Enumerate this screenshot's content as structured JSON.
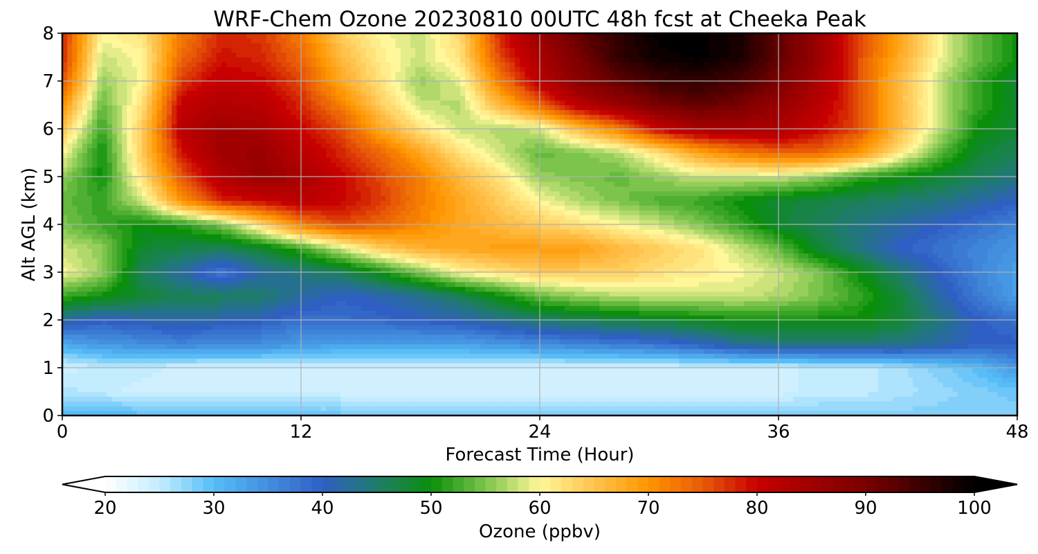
{
  "chart_data": {
    "type": "heatmap",
    "title": "WRF-Chem Ozone  20230810 00UTC 48h fcst at Cheeka Peak",
    "xlabel": "Forecast Time (Hour)",
    "ylabel": "Alt AGL (km)",
    "xlim": [
      0,
      48
    ],
    "ylim": [
      0,
      8
    ],
    "xticks": [
      "0",
      "12",
      "24",
      "36",
      "48"
    ],
    "yticks": [
      "0",
      "1",
      "2",
      "3",
      "4",
      "5",
      "6",
      "7",
      "8"
    ],
    "grid": true,
    "colorbar": {
      "label": "Ozone  (ppbv)",
      "range": [
        20,
        100
      ],
      "ticks": [
        "20",
        "30",
        "40",
        "50",
        "60",
        "70",
        "80",
        "90",
        "100"
      ],
      "extend": "both",
      "stops": [
        {
          "v": 20,
          "c": "#ffffff"
        },
        {
          "v": 25,
          "c": "#c4ecff"
        },
        {
          "v": 30,
          "c": "#56bdf7"
        },
        {
          "v": 40,
          "c": "#2f5fc4"
        },
        {
          "v": 45,
          "c": "#1f7c6c"
        },
        {
          "v": 50,
          "c": "#0a8f0a"
        },
        {
          "v": 55,
          "c": "#7cc44c"
        },
        {
          "v": 60,
          "c": "#fff799"
        },
        {
          "v": 65,
          "c": "#ffc24d"
        },
        {
          "v": 70,
          "c": "#ff9500"
        },
        {
          "v": 75,
          "c": "#e85a08"
        },
        {
          "v": 80,
          "c": "#c80000"
        },
        {
          "v": 90,
          "c": "#7a0000"
        },
        {
          "v": 100,
          "c": "#000000"
        }
      ]
    },
    "hours": [
      0,
      2,
      4,
      6,
      8,
      10,
      12,
      14,
      16,
      18,
      20,
      22,
      24,
      26,
      28,
      30,
      32,
      34,
      36,
      38,
      40,
      42,
      44,
      46,
      48
    ],
    "altitudes_km": [
      0,
      0.5,
      1,
      1.5,
      2,
      2.5,
      3,
      3.5,
      4,
      4.5,
      5,
      5.5,
      6,
      6.5,
      7,
      7.5,
      8
    ],
    "values": [
      [
        30,
        31,
        30,
        30,
        30,
        30,
        29,
        29,
        28,
        28,
        28,
        28,
        28,
        28,
        28,
        28,
        28,
        28,
        28,
        28,
        28,
        28,
        28,
        28,
        28
      ],
      [
        26,
        25,
        24,
        24,
        24,
        24,
        24,
        24,
        24,
        24,
        24,
        24,
        24,
        24,
        24,
        24,
        24,
        24,
        24,
        25,
        25,
        26,
        27,
        28,
        29
      ],
      [
        24,
        25,
        25,
        24,
        24,
        24,
        24,
        24,
        24,
        24,
        24,
        24,
        24,
        24,
        24,
        24,
        24,
        24,
        24,
        25,
        25,
        26,
        28,
        30,
        34
      ],
      [
        32,
        34,
        35,
        36,
        35,
        35,
        34,
        33,
        33,
        33,
        33,
        34,
        35,
        36,
        37,
        38,
        40,
        43,
        44,
        44,
        44,
        44,
        42,
        40,
        40
      ],
      [
        42,
        40,
        41,
        42,
        41,
        40,
        38,
        38,
        39,
        40,
        41,
        43,
        45,
        46,
        47,
        48,
        49,
        50,
        50,
        50,
        50,
        48,
        44,
        40,
        38
      ],
      [
        52,
        50,
        48,
        46,
        46,
        45,
        42,
        40,
        41,
        43,
        46,
        50,
        54,
        56,
        57,
        58,
        58,
        58,
        57,
        55,
        52,
        48,
        42,
        37,
        33
      ],
      [
        60,
        56,
        46,
        42,
        37,
        42,
        44,
        46,
        50,
        55,
        60,
        62,
        64,
        64,
        64,
        62,
        61,
        60,
        58,
        55,
        50,
        45,
        40,
        36,
        33
      ],
      [
        58,
        56,
        48,
        47,
        46,
        48,
        52,
        58,
        64,
        67,
        68,
        69,
        69,
        69,
        66,
        64,
        62,
        58,
        54,
        48,
        44,
        40,
        38,
        36,
        34
      ],
      [
        55,
        52,
        50,
        51,
        55,
        63,
        72,
        76,
        74,
        71,
        68,
        66,
        64,
        62,
        60,
        58,
        55,
        52,
        48,
        46,
        44,
        42,
        40,
        38,
        36
      ],
      [
        54,
        52,
        58,
        70,
        78,
        80,
        82,
        80,
        77,
        72,
        68,
        64,
        60,
        57,
        55,
        53,
        52,
        50,
        48,
        47,
        46,
        45,
        44,
        42,
        40
      ],
      [
        56,
        50,
        62,
        75,
        83,
        86,
        84,
        80,
        76,
        72,
        66,
        62,
        56,
        55,
        54,
        56,
        58,
        58,
        58,
        56,
        52,
        50,
        48,
        46,
        44
      ],
      [
        60,
        50,
        64,
        79,
        85,
        86,
        82,
        78,
        74,
        68,
        62,
        58,
        54,
        55,
        57,
        62,
        68,
        72,
        74,
        74,
        70,
        62,
        54,
        48,
        46
      ],
      [
        65,
        52,
        64,
        82,
        85,
        84,
        80,
        76,
        68,
        62,
        58,
        57,
        58,
        66,
        72,
        80,
        84,
        84,
        84,
        80,
        76,
        66,
        58,
        50,
        48
      ],
      [
        70,
        54,
        62,
        81,
        83,
        82,
        78,
        72,
        64,
        58,
        57,
        66,
        74,
        82,
        86,
        90,
        92,
        90,
        86,
        82,
        76,
        66,
        58,
        52,
        48
      ],
      [
        76,
        56,
        60,
        77,
        81,
        80,
        76,
        68,
        62,
        56,
        59,
        72,
        82,
        88,
        92,
        95,
        96,
        94,
        90,
        84,
        76,
        66,
        58,
        52,
        48
      ],
      [
        78,
        58,
        60,
        74,
        79,
        78,
        74,
        66,
        61,
        58,
        62,
        76,
        84,
        90,
        96,
        99,
        100,
        98,
        92,
        86,
        76,
        68,
        60,
        54,
        50
      ],
      [
        78,
        60,
        62,
        72,
        78,
        77,
        72,
        64,
        60,
        58,
        63,
        78,
        86,
        92,
        96,
        100,
        100,
        98,
        92,
        86,
        76,
        68,
        60,
        54,
        50
      ]
    ]
  }
}
